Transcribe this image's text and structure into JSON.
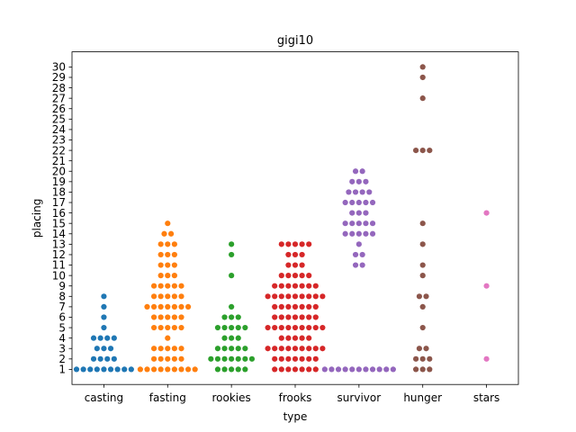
{
  "chart_data": {
    "type": "scatter",
    "title": "gigi10",
    "xlabel": "type",
    "ylabel": "placing",
    "categories": [
      "casting",
      "fasting",
      "rookies",
      "frooks",
      "survivor",
      "hunger",
      "stars"
    ],
    "y_ticks": [
      1,
      2,
      3,
      4,
      5,
      6,
      7,
      8,
      9,
      10,
      11,
      12,
      13,
      14,
      15,
      16,
      17,
      18,
      19,
      20,
      21,
      22,
      23,
      24,
      25,
      26,
      27,
      28,
      29,
      30
    ],
    "ylim": [
      -0.45,
      31.45
    ],
    "grid": false,
    "series": [
      {
        "category": "casting",
        "color": "#1f77b4",
        "counts": {
          "1": 9,
          "2": 4,
          "3": 3,
          "4": 4,
          "5": 1,
          "6": 1,
          "7": 1,
          "8": 1
        }
      },
      {
        "category": "fasting",
        "color": "#ff7f0e",
        "counts": {
          "1": 9,
          "2": 5,
          "3": 5,
          "4": 1,
          "5": 5,
          "6": 5,
          "7": 7,
          "8": 5,
          "9": 5,
          "10": 3,
          "11": 3,
          "12": 3,
          "13": 3,
          "14": 2,
          "15": 1
        }
      },
      {
        "category": "rookies",
        "color": "#2ca02c",
        "counts": {
          "1": 5,
          "2": 7,
          "3": 5,
          "4": 3,
          "5": 5,
          "6": 3,
          "7": 1,
          "10": 1,
          "12": 1,
          "13": 1
        }
      },
      {
        "category": "frooks",
        "color": "#d62728",
        "counts": {
          "1": 7,
          "2": 7,
          "3": 9,
          "4": 5,
          "5": 9,
          "6": 7,
          "7": 7,
          "8": 9,
          "9": 7,
          "10": 5,
          "11": 3,
          "12": 3,
          "13": 5
        }
      },
      {
        "category": "survivor",
        "color": "#9467bd",
        "counts": {
          "1": 11,
          "11": 2,
          "12": 2,
          "13": 1,
          "14": 5,
          "15": 5,
          "16": 3,
          "17": 5,
          "18": 4,
          "19": 3,
          "20": 2
        }
      },
      {
        "category": "hunger",
        "color": "#8c564b",
        "counts": {
          "1": 3,
          "2": 3,
          "3": 2,
          "5": 1,
          "7": 1,
          "8": 2,
          "10": 1,
          "11": 1,
          "13": 1,
          "15": 1,
          "22": 3,
          "27": 1,
          "29": 1,
          "30": 1
        }
      },
      {
        "category": "stars",
        "color": "#e377c2",
        "counts": {
          "2": 1,
          "9": 1,
          "16": 1
        }
      }
    ]
  }
}
